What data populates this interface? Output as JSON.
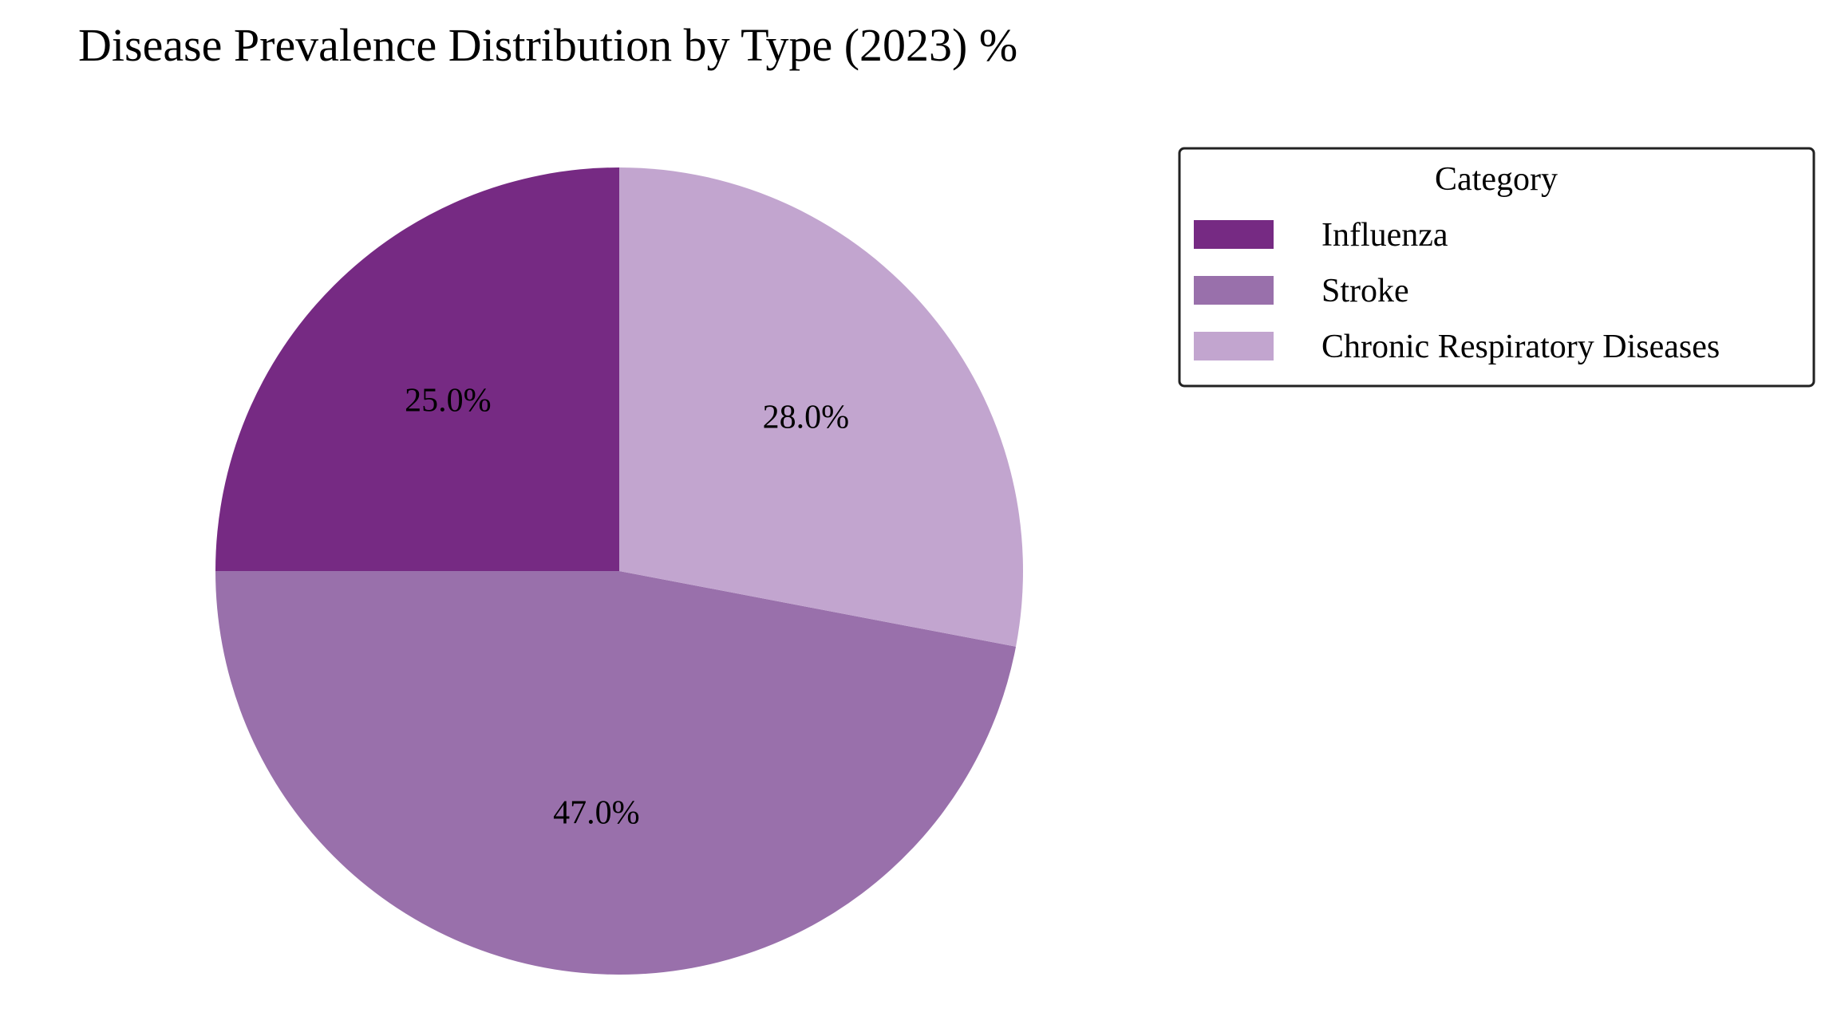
{
  "chart_data": {
    "type": "pie",
    "title": "Disease Prevalence Distribution by Type (2023) %",
    "categories": [
      "Influenza",
      "Stroke",
      "Chronic Respiratory Diseases"
    ],
    "values": [
      25.0,
      47.0,
      28.0
    ],
    "value_labels": [
      "25.0%",
      "47.0%",
      "28.0%"
    ],
    "colors": [
      "#762a83",
      "#9970ab",
      "#c2a5cf"
    ],
    "start_angle_deg": 90,
    "direction": "counterclockwise",
    "legend": {
      "title": "Category",
      "placement": "upper-right-outside"
    }
  }
}
